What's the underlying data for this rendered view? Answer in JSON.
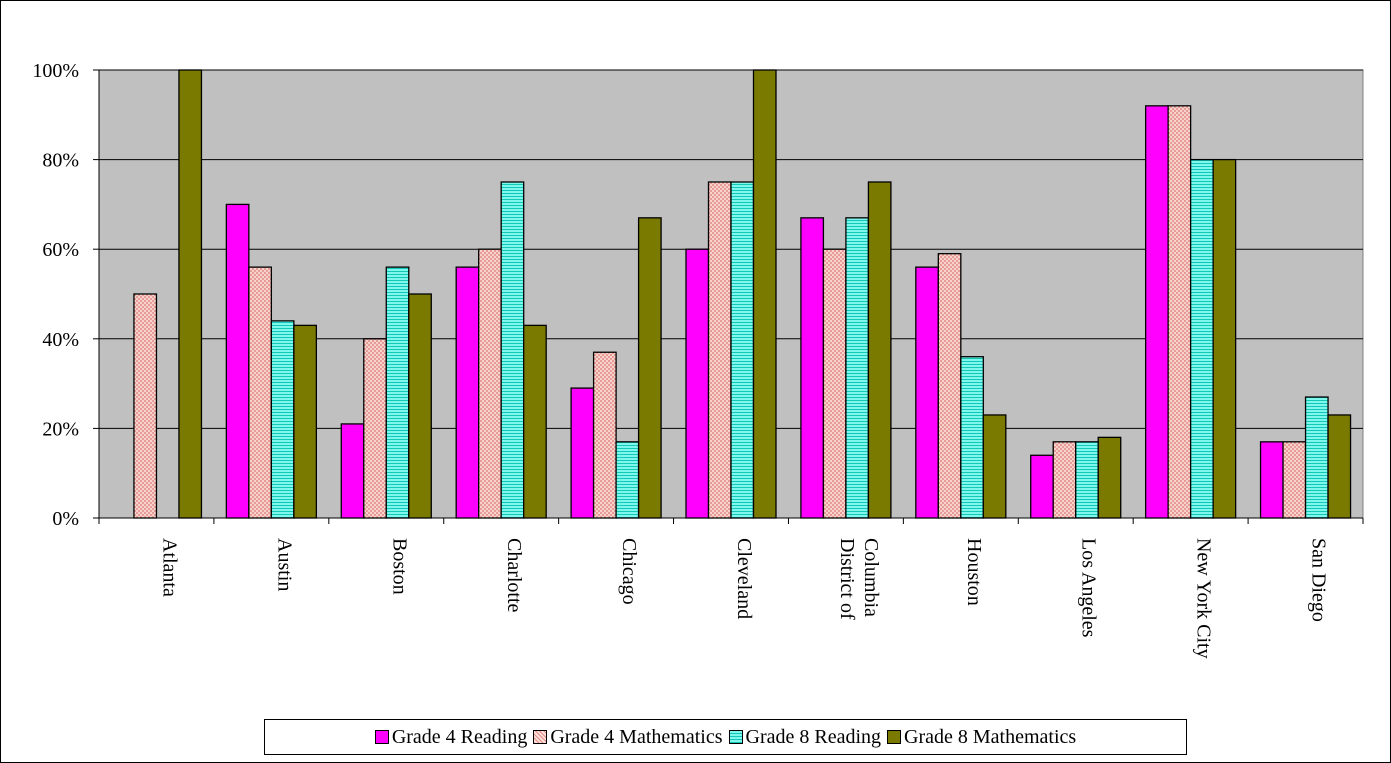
{
  "chart_data": {
    "type": "bar",
    "categories": [
      "Atlanta",
      "Austin",
      "Boston",
      "Charlotte",
      "Chicago",
      "Cleveland",
      "District of Columbia",
      "Houston",
      "Los Angeles",
      "New York City",
      "San Diego"
    ],
    "category_lines": [
      [
        "Atlanta"
      ],
      [
        "Austin"
      ],
      [
        "Boston"
      ],
      [
        "Charlotte"
      ],
      [
        "Chicago"
      ],
      [
        "Cleveland"
      ],
      [
        "District of",
        "Columbia"
      ],
      [
        "Houston"
      ],
      [
        "Los Angeles"
      ],
      [
        "New York City"
      ],
      [
        "San Diego"
      ]
    ],
    "series": [
      {
        "name": "Grade 4 Reading",
        "values": [
          null,
          70,
          21,
          56,
          29,
          60,
          67,
          56,
          14,
          92,
          17
        ],
        "color": "#ff00ff",
        "pattern": "solid"
      },
      {
        "name": "Grade 4 Mathematics",
        "values": [
          50,
          56,
          40,
          60,
          37,
          75,
          60,
          59,
          17,
          92,
          17
        ],
        "color": "#f5c9c2",
        "pattern": "crosshatch"
      },
      {
        "name": "Grade 8 Reading",
        "values": [
          null,
          44,
          56,
          75,
          17,
          75,
          67,
          36,
          17,
          80,
          27
        ],
        "color": "#4ff0e0",
        "pattern": "horizontal-lines"
      },
      {
        "name": "Grade 8 Mathematics",
        "values": [
          100,
          43,
          50,
          43,
          67,
          100,
          75,
          23,
          18,
          80,
          23
        ],
        "color": "#7a7a00",
        "pattern": "solid"
      }
    ],
    "ylim": [
      0,
      100
    ],
    "yticks": [
      "0%",
      "20%",
      "40%",
      "60%",
      "80%",
      "100%"
    ],
    "grid": true,
    "plot_background": "#c0c0c0",
    "legend_position": "bottom"
  }
}
